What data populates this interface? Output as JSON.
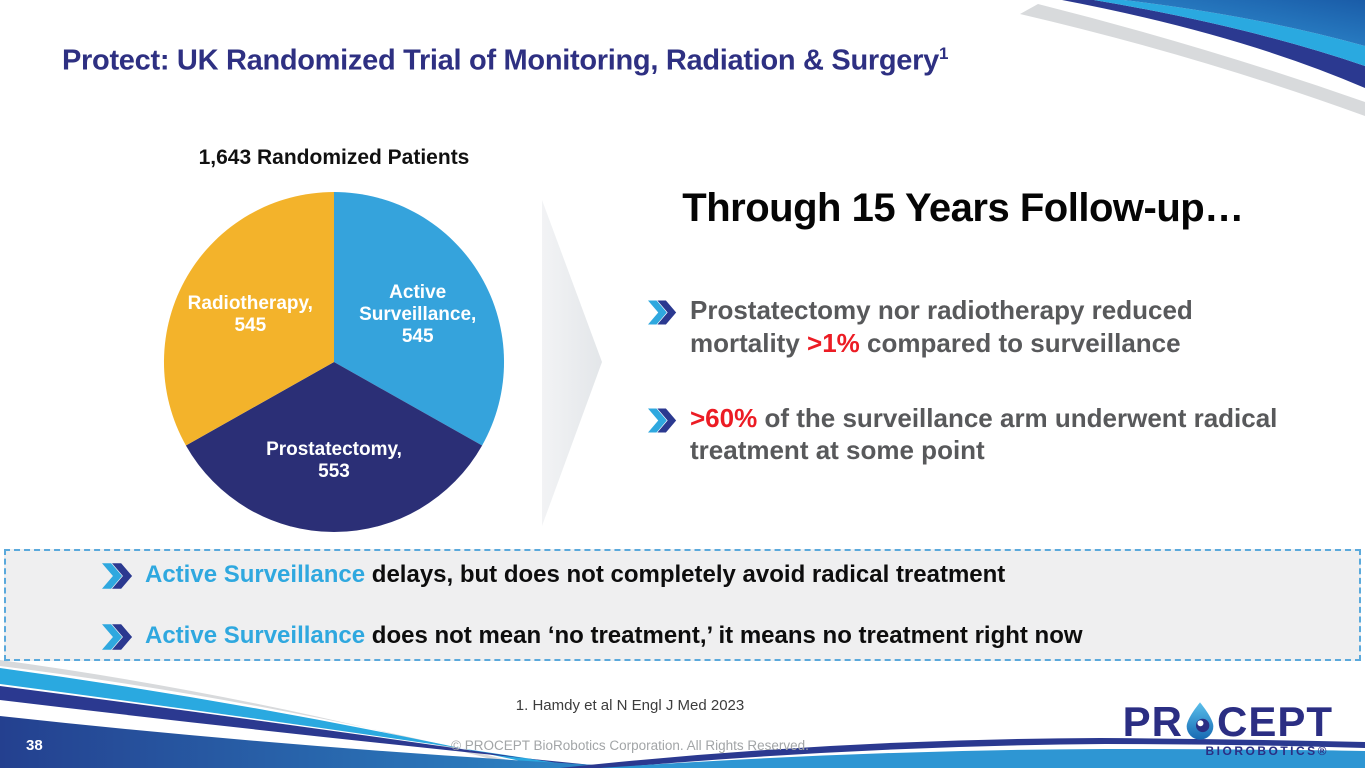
{
  "slide": {
    "title": "Protect: UK Randomized Trial of Monitoring, Radiation & Surgery",
    "title_superscript": "1",
    "page_number": "38"
  },
  "chart_data": {
    "type": "pie",
    "title": "1,643 Randomized Patients",
    "total": 1643,
    "start_angle_deg": 0,
    "direction": "clockwise",
    "slices": [
      {
        "label": "Active Surveillance",
        "value": 545,
        "color": "#35A3DC",
        "display_lines": [
          "Active",
          "Surveillance,",
          "545"
        ]
      },
      {
        "label": "Prostatectomy",
        "value": 553,
        "color": "#2B2F76",
        "display_lines": [
          "Prostatectomy,",
          "553"
        ]
      },
      {
        "label": "Radiotherapy",
        "value": 545,
        "color": "#F3B32B",
        "display_lines": [
          "Radiotherapy,",
          "545"
        ]
      }
    ]
  },
  "right_panel": {
    "heading": "Through 15 Years Follow-up…",
    "bullets": [
      {
        "segments": [
          {
            "text": "Prostatectomy nor radiotherapy reduced mortality ",
            "color": "gray"
          },
          {
            "text": ">1%",
            "color": "red"
          },
          {
            "text": " compared to surveillance",
            "color": "gray"
          }
        ]
      },
      {
        "segments": [
          {
            "text": ">60%",
            "color": "red"
          },
          {
            "text": " of the surveillance arm underwent radical treatment at some point",
            "color": "gray"
          }
        ]
      }
    ]
  },
  "callout_box": {
    "bullets": [
      {
        "segments": [
          {
            "text": "Active Surveillance",
            "color": "blue"
          },
          {
            "text": " delays, but does not completely avoid radical treatment",
            "color": "black"
          }
        ]
      },
      {
        "segments": [
          {
            "text": "Active Surveillance",
            "color": "blue"
          },
          {
            "text": " does not mean ‘no treatment,’ it means no treatment right now",
            "color": "black"
          }
        ]
      }
    ]
  },
  "footer": {
    "reference": "1. Hamdy et al N Engl J Med 2023",
    "copyright": "© PROCEPT BioRobotics Corporation. All Rights Reserved.",
    "logo_text_left": "PR",
    "logo_text_right": "CEPT",
    "logo_subtext": "BIOROBOTICS®"
  },
  "colors": {
    "gray": "#58595B",
    "red": "#EC1C24",
    "blue": "#2FA8DF",
    "black": "#0d0d0d",
    "navy": "#2B3990",
    "lightblue": "#2AA9E0",
    "title_navy": "#2E3082"
  }
}
